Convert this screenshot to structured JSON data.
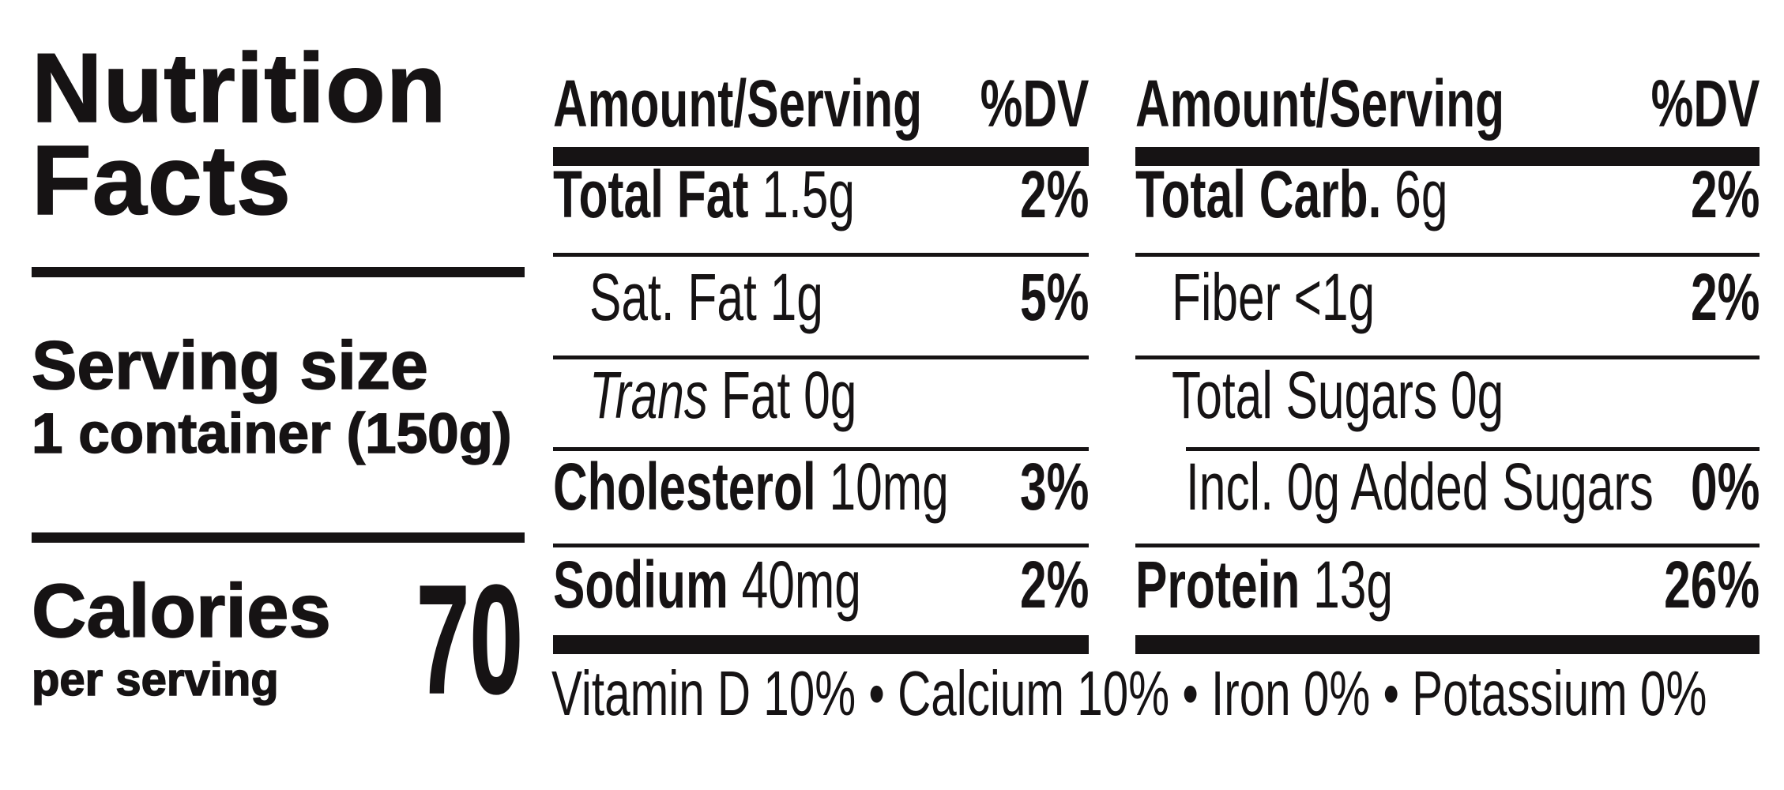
{
  "colors": {
    "ink": "#161314",
    "background": "#ffffff"
  },
  "title": {
    "line1": "Nutrition",
    "line2": "Facts"
  },
  "serving": {
    "label": "Serving size",
    "value": "1 container (150g)"
  },
  "calories": {
    "label": "Calories",
    "sublabel": "per serving",
    "value": "70"
  },
  "columns": [
    {
      "header": {
        "amount": "Amount/Serving",
        "dv": "%DV"
      },
      "rows": [
        {
          "bold": "Total Fat",
          "rest": " 1.5g",
          "dv": "2%"
        },
        {
          "plain": "Sat. Fat 1g",
          "dv": "5%"
        },
        {
          "italic": "Trans",
          "rest": " Fat 0g",
          "dv": ""
        },
        {
          "bold": "Cholesterol",
          "rest": " 10mg",
          "dv": "3%"
        },
        {
          "bold": "Sodium",
          "rest": " 40mg",
          "dv": "2%"
        }
      ]
    },
    {
      "header": {
        "amount": "Amount/Serving",
        "dv": "%DV"
      },
      "rows": [
        {
          "bold": "Total Carb.",
          "rest": " 6g",
          "dv": "2%"
        },
        {
          "plain": "Fiber <1g",
          "dv": "2%"
        },
        {
          "plain": "Total Sugars 0g",
          "dv": ""
        },
        {
          "plain": "Incl. 0g Added Sugars",
          "dv": "0%"
        },
        {
          "bold": "Protein",
          "rest": " 13g",
          "dv": "26%"
        }
      ]
    }
  ],
  "footer": "Vitamin D 10% • Calcium 10% • Iron 0% • Potassium 0%"
}
